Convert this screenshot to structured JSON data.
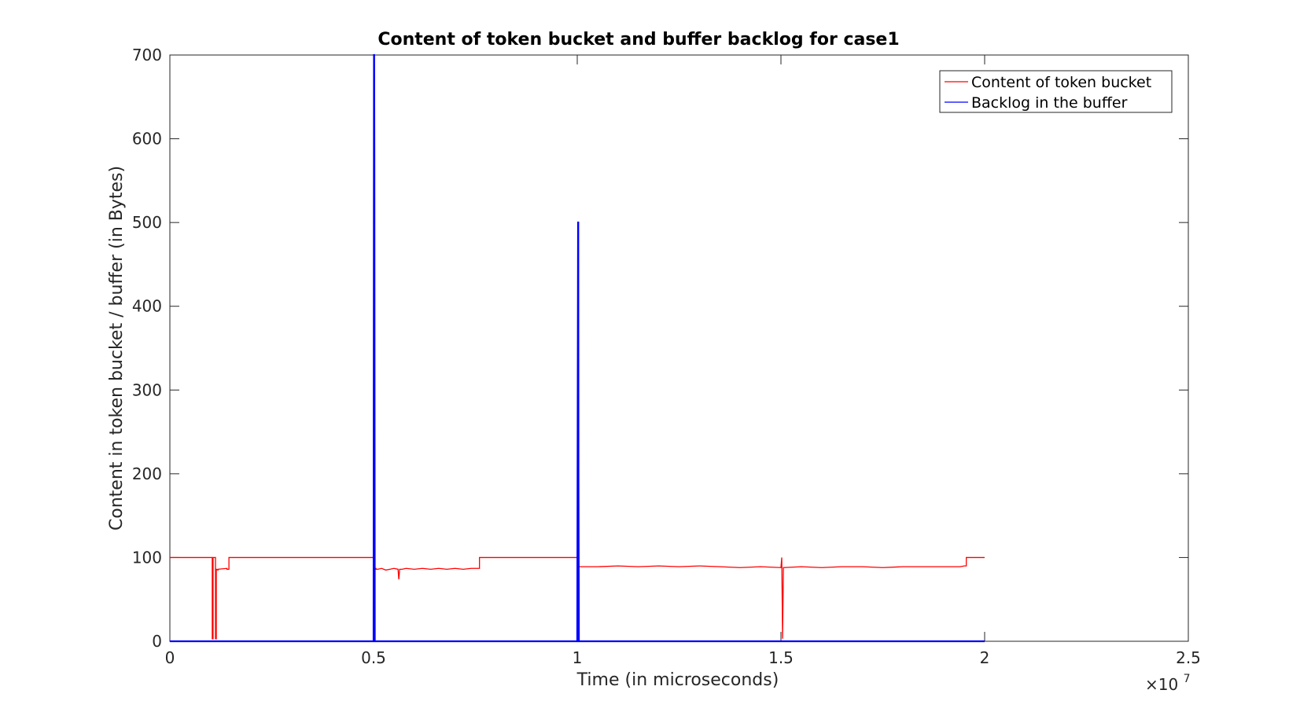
{
  "chart_data": {
    "type": "line",
    "title": "Content of token bucket and buffer backlog for case1",
    "xlabel": "Time (in microseconds)",
    "ylabel": "Content in token bucket / buffer (in Bytes)",
    "x_multiplier_base": "×10",
    "x_multiplier_exp": "7",
    "xlim": [
      0,
      2.5
    ],
    "ylim": [
      0,
      700
    ],
    "x_ticks": [
      0,
      0.5,
      1,
      1.5,
      2,
      2.5
    ],
    "x_tick_labels": [
      "0",
      "0.5",
      "1",
      "1.5",
      "2",
      "2.5"
    ],
    "y_ticks": [
      0,
      100,
      200,
      300,
      400,
      500,
      600,
      700
    ],
    "y_tick_labels": [
      "0",
      "100",
      "200",
      "300",
      "400",
      "500",
      "600",
      "700"
    ],
    "grid": false,
    "legend_position": "top-right",
    "series": [
      {
        "name": "Content of token bucket",
        "color": "#ff0000",
        "x": [
          0,
          0.1,
          0.104,
          0.104,
          0.106,
          0.106,
          0.112,
          0.112,
          0.114,
          0.114,
          0.118,
          0.118,
          0.14,
          0.14,
          0.145,
          0.145,
          0.5,
          0.5,
          0.501,
          0.501,
          0.503,
          0.503,
          0.506,
          0.506,
          0.51,
          0.52,
          0.53,
          0.54,
          0.55,
          0.56,
          0.562,
          0.564,
          0.57,
          0.58,
          0.6,
          0.62,
          0.64,
          0.66,
          0.68,
          0.7,
          0.72,
          0.74,
          0.755,
          0.76,
          0.76,
          1.0,
          1.0,
          1.001,
          1.001,
          1.003,
          1.003,
          1.01,
          1.05,
          1.1,
          1.15,
          1.2,
          1.25,
          1.3,
          1.35,
          1.4,
          1.45,
          1.5,
          1.5,
          1.502,
          1.502,
          1.504,
          1.504,
          1.506,
          1.506,
          1.55,
          1.6,
          1.65,
          1.7,
          1.75,
          1.8,
          1.85,
          1.9,
          1.94,
          1.95,
          1.955,
          1.955,
          2.0
        ],
        "y": [
          100,
          100,
          100,
          3,
          3,
          100,
          100,
          3,
          3,
          86,
          85,
          86,
          87,
          86,
          86,
          100,
          100,
          3,
          3,
          80,
          80,
          87,
          87,
          86,
          86,
          87,
          85,
          86,
          87,
          86,
          74,
          86,
          86,
          87,
          86,
          87,
          86,
          87,
          86,
          87,
          86,
          87,
          87,
          87,
          100,
          100,
          3,
          3,
          100,
          100,
          89,
          89,
          89,
          90,
          89,
          90,
          89,
          90,
          89,
          88,
          89,
          88,
          88,
          100,
          100,
          3,
          3,
          88,
          88,
          89,
          88,
          89,
          89,
          88,
          89,
          89,
          89,
          89,
          90,
          90,
          100,
          100
        ]
      },
      {
        "name": "Backlog in the buffer",
        "color": "#0000ff",
        "x": [
          0,
          0.5,
          0.5,
          0.501,
          0.5015,
          0.502,
          0.503,
          0.503,
          1.0,
          1.0,
          1.002,
          1.0025,
          1.003,
          1.004,
          1.004,
          2.0
        ],
        "y": [
          0,
          0,
          10,
          700,
          700,
          580,
          0,
          0,
          0,
          10,
          500,
          500,
          200,
          0,
          0,
          0
        ]
      }
    ]
  }
}
